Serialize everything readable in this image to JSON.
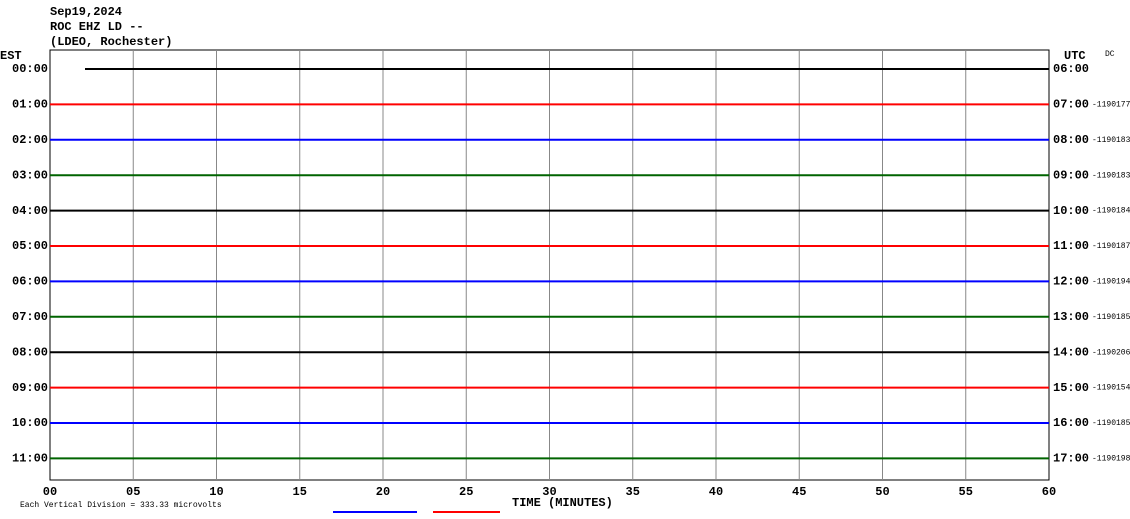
{
  "header": {
    "date": "Sep19,2024",
    "station": "ROC EHZ LD --",
    "network": "(LDEO, Rochester)"
  },
  "left_label": "EST",
  "right_label": "UTC",
  "dc": "DC",
  "rows": [
    {
      "est": "00:00",
      "utc": "06:00",
      "count": null,
      "color": "#000000"
    },
    {
      "est": "01:00",
      "utc": "07:00",
      "count": "-1190177",
      "color": "#ff0000"
    },
    {
      "est": "02:00",
      "utc": "08:00",
      "count": "-1190183",
      "color": "#0000ff"
    },
    {
      "est": "03:00",
      "utc": "09:00",
      "count": "-1190183",
      "color": "#006400"
    },
    {
      "est": "04:00",
      "utc": "10:00",
      "count": "-1190184",
      "color": "#000000"
    },
    {
      "est": "05:00",
      "utc": "11:00",
      "count": "-1190187",
      "color": "#ff0000"
    },
    {
      "est": "06:00",
      "utc": "12:00",
      "count": "-1190194",
      "color": "#0000ff"
    },
    {
      "est": "07:00",
      "utc": "13:00",
      "count": "-1190185",
      "color": "#006400"
    },
    {
      "est": "08:00",
      "utc": "14:00",
      "count": "-1190206",
      "color": "#000000"
    },
    {
      "est": "09:00",
      "utc": "15:00",
      "count": "-1190154",
      "color": "#ff0000"
    },
    {
      "est": "10:00",
      "utc": "16:00",
      "count": "-1190185",
      "color": "#0000ff"
    },
    {
      "est": "11:00",
      "utc": "17:00",
      "count": "-1190198",
      "color": "#006400"
    }
  ],
  "x_axis": {
    "label": "TIME (MINUTES)",
    "ticks": [
      "00",
      "05",
      "10",
      "15",
      "20",
      "25",
      "30",
      "35",
      "40",
      "45",
      "50",
      "55",
      "60"
    ]
  },
  "scale_note": "Each Vertical Division = 333.33 microvolts"
}
